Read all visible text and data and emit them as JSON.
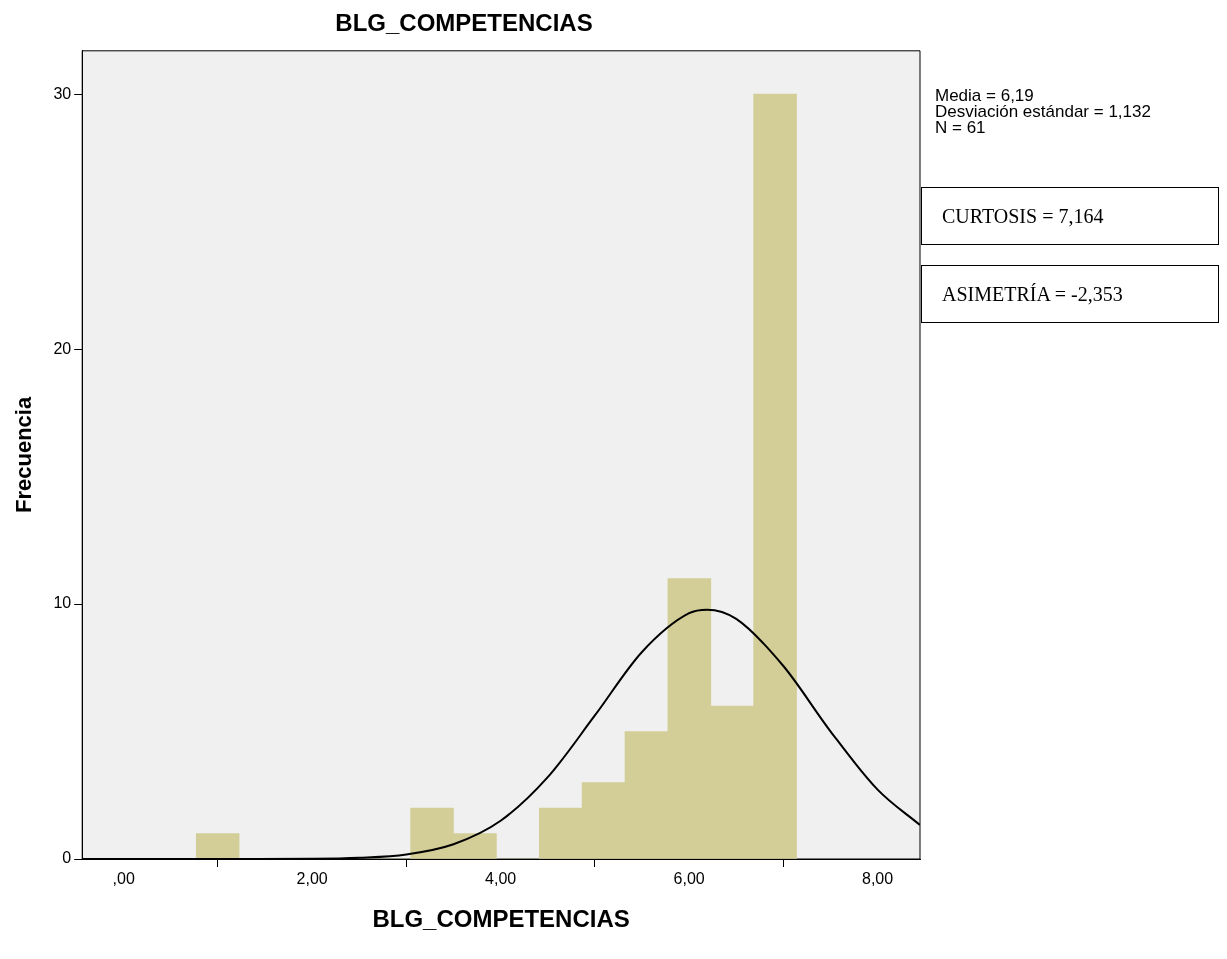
{
  "chart_data": {
    "type": "histogram",
    "title": "BLG_COMPETENCIAS",
    "xlabel": "BLG_COMPETENCIAS",
    "ylabel": "Frecuencia",
    "bins": [
      0.77,
      1.225,
      1.68,
      2.135,
      2.59,
      3.045,
      3.5,
      3.955,
      4.41,
      4.865,
      5.32,
      5.775,
      6.23,
      6.685,
      7.14
    ],
    "color": "#d3ce97",
    "values": [
      1,
      0,
      0,
      0,
      0,
      2,
      1,
      0,
      2,
      3,
      5,
      11,
      6,
      30
    ],
    "series": [
      {
        "type": "line",
        "color": "#000000",
        "x": [
          -0.44,
          0,
          1,
          2,
          2.5,
          3,
          3.5,
          4,
          4.5,
          5,
          5.5,
          6,
          6.19,
          6.5,
          7,
          7.5,
          8,
          8.45
        ],
        "values": [
          0,
          0,
          0,
          0.01,
          0.05,
          0.18,
          0.58,
          1.5,
          3.21,
          5.63,
          8.12,
          9.64,
          9.78,
          9.42,
          7.57,
          5.01,
          2.72,
          1.33
        ]
      }
    ],
    "marker": "none",
    "line_style": "solid",
    "grid": false,
    "legend": false,
    "xlim": [
      -0.44,
      8.45
    ],
    "xticks": [
      {
        "value": 0,
        "label": ",00"
      },
      {
        "value": 2,
        "label": "2,00"
      },
      {
        "value": 4,
        "label": "4,00"
      },
      {
        "value": 6,
        "label": "6,00"
      },
      {
        "value": 8,
        "label": "8,00"
      }
    ],
    "ylim": [
      0,
      31.7
    ],
    "yticks": [
      0,
      10,
      20,
      30
    ],
    "annotations": [
      "Media = 6,19",
      "Desviación estándar = 1,132",
      "N = 61",
      "CURTOSIS = 7,164",
      "ASIMETRÍA = -2,353"
    ]
  }
}
